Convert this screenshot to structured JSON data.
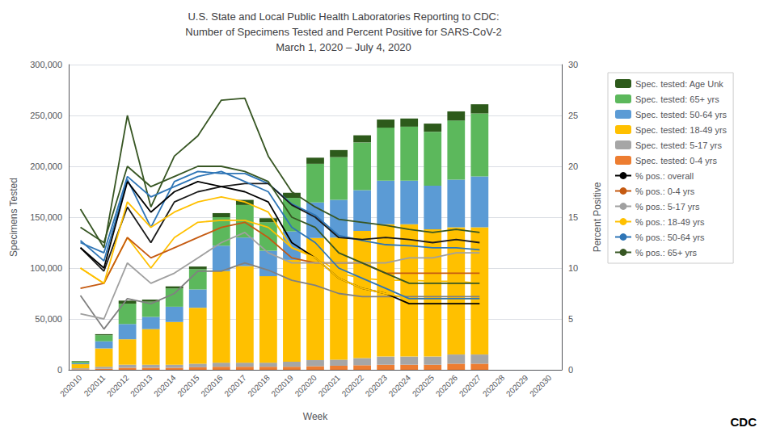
{
  "chart_data": {
    "type": "bar",
    "title": "U.S. State and Local Public Health Laboratories Reporting to CDC:\nNumber of Specimens Tested and Percent Positive for SARS-CoV-2\nMarch 1, 2020 – July 4, 2020",
    "xlabel": "Week",
    "ylabel": "Specimens Tested",
    "y2label": "Percent Positive",
    "categories": [
      "202010",
      "202011",
      "202012",
      "202013",
      "202014",
      "202015",
      "202016",
      "202017",
      "202018",
      "202019",
      "202020",
      "202021",
      "202022",
      "202023",
      "202024",
      "202025",
      "202026",
      "202027",
      "202028",
      "202029",
      "202030"
    ],
    "stacked": true,
    "grid": true,
    "legend": "right",
    "ylim": [
      0,
      300000
    ],
    "yticks": [
      0,
      {
        "value": 50000,
        "label": "50,000"
      },
      {
        "value": 100000,
        "label": "100,000"
      },
      {
        "value": 150000,
        "label": "150,000"
      },
      {
        "value": 200000,
        "label": "200,000"
      },
      {
        "value": 250000,
        "label": "250,000"
      },
      {
        "value": 300000,
        "label": "300,000"
      }
    ],
    "y2lim": [
      0,
      30
    ],
    "y2ticks": [
      0,
      5,
      10,
      15,
      20,
      25,
      30
    ],
    "annotations": [
      "CDC"
    ],
    "series": [
      {
        "name": "Spec. tested: 0-4 yrs",
        "type": "bar",
        "color": "#ed7d31",
        "values": [
          500,
          1000,
          2000,
          2000,
          2000,
          2500,
          3000,
          3000,
          3000,
          3000,
          3500,
          4000,
          4500,
          5000,
          5000,
          5000,
          6000,
          6000,
          0,
          0,
          0
        ]
      },
      {
        "name": "Spec. tested: 5-17 yrs",
        "type": "bar",
        "color": "#a6a6a6",
        "values": [
          1000,
          2000,
          3000,
          3000,
          3000,
          3500,
          4000,
          4000,
          4000,
          5000,
          6000,
          6000,
          7000,
          8000,
          8000,
          8000,
          9000,
          9000,
          0,
          0,
          0
        ]
      },
      {
        "name": "Spec. tested: 18-49 yrs",
        "type": "bar",
        "color": "#ffc000",
        "values": [
          4000,
          18000,
          25000,
          35000,
          42000,
          55000,
          90000,
          95000,
          85000,
          100000,
          120000,
          120000,
          125000,
          130000,
          130000,
          125000,
          125000,
          125000,
          0,
          0,
          0
        ]
      },
      {
        "name": "Spec. tested: 50-64 yrs",
        "type": "bar",
        "color": "#5b9bd5",
        "values": [
          1000,
          7000,
          15000,
          12000,
          15000,
          18000,
          25000,
          28000,
          25000,
          28000,
          35000,
          37000,
          40000,
          43000,
          43000,
          43000,
          47000,
          50000,
          0,
          0,
          0
        ]
      },
      {
        "name": "Spec. tested: 65+ yrs",
        "type": "bar",
        "color": "#5cb85c",
        "values": [
          1500,
          6000,
          20000,
          15000,
          18000,
          20000,
          28000,
          32000,
          28000,
          33000,
          38000,
          42000,
          47000,
          52000,
          53000,
          53000,
          58000,
          62000,
          0,
          0,
          0
        ]
      },
      {
        "name": "Spec. tested: Age Unk",
        "type": "bar",
        "color": "#2d5a1b",
        "values": [
          500,
          1000,
          3000,
          2000,
          2000,
          2500,
          4000,
          5000,
          4000,
          5000,
          6000,
          7000,
          7000,
          8000,
          8000,
          8000,
          9000,
          9000,
          0,
          0,
          0
        ]
      },
      {
        "type": "line",
        "color": "#375623",
        "values": [
          158000,
          120000,
          250000,
          160000,
          210000,
          230000,
          265000,
          267000,
          210000,
          175000,
          160000,
          148000,
          145000,
          142000,
          138000,
          135000,
          138000,
          135000,
          null,
          null,
          null
        ]
      },
      {
        "type": "line",
        "color": "#2e75b6",
        "values": [
          127000,
          107000,
          187000,
          140000,
          185000,
          195000,
          193000,
          193000,
          183000,
          163000,
          152000,
          132000,
          127000,
          123000,
          122000,
          120000,
          120000,
          118000,
          null,
          null,
          null
        ]
      },
      {
        "type": "line",
        "color": "#1a1a1a",
        "values": [
          120000,
          97000,
          160000,
          125000,
          165000,
          175000,
          180000,
          183000,
          183000,
          162000,
          150000,
          130000,
          128000,
          130000,
          128000,
          125000,
          128000,
          125000,
          null,
          null,
          null
        ]
      },
      {
        "type": "line",
        "color": "#ffc000",
        "values": [
          100000,
          85000,
          130000,
          100000,
          130000,
          145000,
          147000,
          147000,
          140000,
          120000,
          112000,
          95000,
          90000,
          88000,
          88000,
          87000,
          87000,
          85000,
          null,
          null,
          null
        ]
      },
      {
        "type": "line",
        "color": "#808080",
        "values": [
          73000,
          40000,
          70000,
          65000,
          75000,
          97000,
          97000,
          105000,
          98000,
          88000,
          83000,
          75000,
          72000,
          72000,
          72000,
          72000,
          72000,
          72000,
          null,
          null,
          null
        ]
      },
      {
        "name": "% pos.: overall",
        "type": "line",
        "axis": "y2",
        "color": "#000000",
        "values": [
          12.0,
          10.0,
          18.5,
          15.5,
          17.5,
          18.5,
          18.0,
          17.5,
          16.5,
          12.5,
          11.0,
          9.0,
          8.0,
          7.5,
          6.5,
          6.5,
          6.5,
          6.5,
          null,
          null,
          null
        ]
      },
      {
        "name": "% pos.: 0-4 yrs",
        "type": "line",
        "axis": "y2",
        "color": "#c55a11",
        "values": [
          8.0,
          8.5,
          13.0,
          11.0,
          12.0,
          13.0,
          14.0,
          14.5,
          13.0,
          11.0,
          10.5,
          10.5,
          10.5,
          9.5,
          9.5,
          9.5,
          9.5,
          9.5,
          null,
          null,
          null
        ]
      },
      {
        "name": "% pos.: 5-17 yrs",
        "type": "line",
        "axis": "y2",
        "color": "#a0a0a0",
        "values": [
          5.5,
          5.0,
          10.5,
          8.5,
          9.5,
          11.0,
          12.5,
          13.5,
          11.5,
          10.5,
          10.5,
          10.5,
          10.5,
          10.5,
          11.0,
          11.0,
          11.5,
          11.5,
          null,
          null,
          null
        ]
      },
      {
        "name": "% pos.: 18-49 yrs",
        "type": "line",
        "axis": "y2",
        "color": "#ffc000",
        "values": [
          10.0,
          8.5,
          16.5,
          14.0,
          15.5,
          16.5,
          17.0,
          16.5,
          15.5,
          12.0,
          11.0,
          9.0,
          8.0,
          7.5,
          7.0,
          7.0,
          7.0,
          7.0,
          null,
          null,
          null
        ]
      },
      {
        "name": "% pos.: 50-64 yrs",
        "type": "line",
        "axis": "y2",
        "color": "#2e75b6",
        "values": [
          12.5,
          11.5,
          19.0,
          17.0,
          18.0,
          19.0,
          19.5,
          18.5,
          17.5,
          14.0,
          12.5,
          10.0,
          9.0,
          8.0,
          7.0,
          7.0,
          7.0,
          7.0,
          null,
          null,
          null
        ]
      },
      {
        "name": "% pos.: 65+ yrs",
        "type": "line",
        "axis": "y2",
        "color": "#375623",
        "values": [
          14.0,
          12.5,
          20.0,
          18.0,
          19.0,
          20.0,
          20.0,
          19.5,
          18.5,
          15.0,
          14.0,
          11.5,
          10.5,
          9.5,
          8.5,
          8.5,
          8.5,
          8.5,
          null,
          null,
          null
        ]
      }
    ]
  }
}
